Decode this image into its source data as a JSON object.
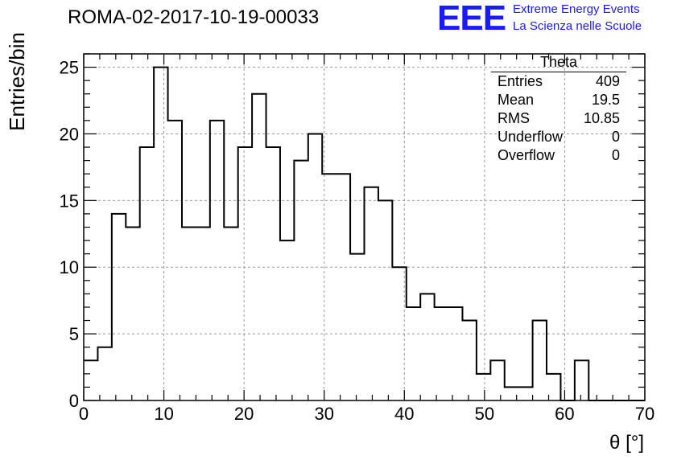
{
  "chart_data": {
    "type": "bar",
    "title": "ROMA-02-2017-10-19-00033",
    "xlabel": "θ [°]",
    "ylabel": "Entries/bin",
    "xlim": [
      0,
      70
    ],
    "ylim": [
      0,
      26
    ],
    "bin_width": 1.75,
    "x_ticks": [
      0,
      10,
      20,
      30,
      40,
      50,
      60,
      70
    ],
    "y_ticks": [
      0,
      5,
      10,
      15,
      20,
      25
    ],
    "grid": true,
    "series": [
      {
        "values": [
          3,
          4,
          14,
          13,
          19,
          25,
          21,
          13,
          13,
          21,
          13,
          19,
          23,
          19,
          12,
          18,
          20,
          17,
          17,
          11,
          16,
          15,
          10,
          7,
          8,
          7,
          7,
          6,
          2,
          3,
          1,
          1,
          6,
          2,
          0,
          3,
          0,
          0,
          0,
          0
        ]
      }
    ],
    "stats_box": {
      "name": "Theta",
      "rows": [
        {
          "label": "Entries",
          "value": "409"
        },
        {
          "label": "Mean",
          "value": "19.5"
        },
        {
          "label": "RMS",
          "value": "10.85"
        },
        {
          "label": "Underflow",
          "value": "0"
        },
        {
          "label": "Overflow",
          "value": "0"
        }
      ],
      "placement": "top-right"
    }
  },
  "logo": {
    "mark": "EEE",
    "line1": "Extreme Energy Events",
    "line2": "La Scienza nelle Scuole",
    "color": "#1a1aff"
  }
}
